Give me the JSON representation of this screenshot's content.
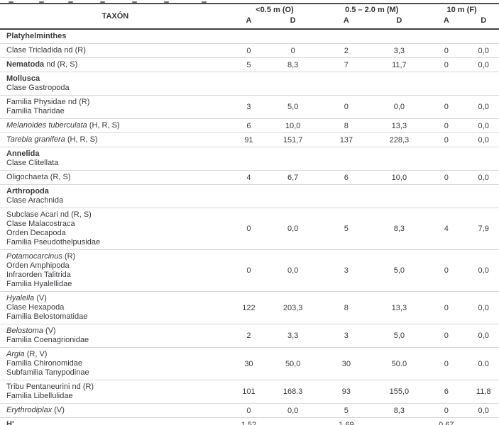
{
  "colors": {
    "text": "#3b3b40",
    "rule_dark": "#4d4d4d",
    "row_separator": "#d9d9d9",
    "background": "#ffffff"
  },
  "table": {
    "taxon_header": "TAXÓN",
    "column_groups": [
      {
        "label": "<0.5 m (O)"
      },
      {
        "label": "0.5 – 2.0 m (M)"
      },
      {
        "label": "10 m (F)"
      }
    ],
    "subcols": [
      "A",
      "D",
      "A",
      "D",
      "A",
      "D"
    ],
    "rows": [
      {
        "lines": [
          [
            {
              "text": "Platyhelminthes",
              "style": "bold"
            }
          ]
        ],
        "values": null
      },
      {
        "lines": [
          [
            {
              "text": "Clase Tricladida nd (R)",
              "style": "normal"
            }
          ]
        ],
        "values": [
          "0",
          "0",
          "2",
          "3,3",
          "0",
          "0,0"
        ]
      },
      {
        "lines": [
          [
            {
              "text": "Nematoda",
              "style": "bold"
            },
            {
              "text": " nd (R, S)",
              "style": "normal"
            }
          ]
        ],
        "values": [
          "5",
          "8,3",
          "7",
          "11,7",
          "0",
          "0,0"
        ]
      },
      {
        "lines": [
          [
            {
              "text": "Mollusca",
              "style": "bold"
            }
          ],
          [
            {
              "text": "Clase Gastropoda",
              "style": "normal"
            }
          ]
        ],
        "values": null
      },
      {
        "lines": [
          [
            {
              "text": "Familia Physidae nd (R)",
              "style": "normal"
            }
          ],
          [
            {
              "text": "Familia Tharidae",
              "style": "normal"
            }
          ]
        ],
        "values": [
          "3",
          "5,0",
          "0",
          "0,0",
          "0",
          "0,0"
        ]
      },
      {
        "lines": [
          [
            {
              "text": "Melanoides tuberculata",
              "style": "italic"
            },
            {
              "text": " (H, R, S)",
              "style": "normal"
            }
          ]
        ],
        "values": [
          "6",
          "10,0",
          "8",
          "13,3",
          "0",
          "0,0"
        ]
      },
      {
        "lines": [
          [
            {
              "text": "Tarebia granifera",
              "style": "italic"
            },
            {
              "text": " (H, R, S)",
              "style": "normal"
            }
          ]
        ],
        "values": [
          "91",
          "151,7",
          "137",
          "228,3",
          "0",
          "0,0"
        ]
      },
      {
        "lines": [
          [
            {
              "text": "Annelida",
              "style": "bold"
            }
          ],
          [
            {
              "text": "Clase Clitellata",
              "style": "normal"
            }
          ]
        ],
        "values": null
      },
      {
        "lines": [
          [
            {
              "text": "Oligochaeta (R, S)",
              "style": "normal"
            }
          ]
        ],
        "values": [
          "4",
          "6,7",
          "6",
          "10,0",
          "0",
          "0,0"
        ]
      },
      {
        "lines": [
          [
            {
              "text": "Arthropoda",
              "style": "bold"
            }
          ],
          [
            {
              "text": "Clase Arachnida",
              "style": "normal"
            }
          ]
        ],
        "values": null
      },
      {
        "lines": [
          [
            {
              "text": "Subclase Acari nd (R, S)",
              "style": "normal"
            }
          ],
          [
            {
              "text": "Clase Malacostraca",
              "style": "normal"
            }
          ],
          [
            {
              "text": "Orden Decapoda",
              "style": "normal"
            }
          ],
          [
            {
              "text": "Familia Pseudothelpusidae",
              "style": "normal"
            }
          ]
        ],
        "values": [
          "0",
          "0,0",
          "5",
          "8,3",
          "4",
          "7,9"
        ]
      },
      {
        "lines": [
          [
            {
              "text": "Potamocarcinus",
              "style": "italic"
            },
            {
              "text": " (R)",
              "style": "normal"
            }
          ],
          [
            {
              "text": "Orden Amphipoda",
              "style": "normal"
            }
          ],
          [
            {
              "text": "Infraorden Talitrida",
              "style": "normal"
            }
          ],
          [
            {
              "text": "Familia Hyalellidae",
              "style": "normal"
            }
          ]
        ],
        "values": [
          "0",
          "0,0",
          "3",
          "5,0",
          "0",
          "0,0"
        ]
      },
      {
        "lines": [
          [
            {
              "text": "Hyalella",
              "style": "italic"
            },
            {
              "text": " (V)",
              "style": "normal"
            }
          ],
          [
            {
              "text": "Clase Hexapoda",
              "style": "normal"
            }
          ],
          [
            {
              "text": "Familia Belostomatidae",
              "style": "normal"
            }
          ]
        ],
        "values": [
          "122",
          "203,3",
          "8",
          "13,3",
          "0",
          "0,0"
        ]
      },
      {
        "lines": [
          [
            {
              "text": "Belostoma",
              "style": "italic"
            },
            {
              "text": " (V)",
              "style": "normal"
            }
          ],
          [
            {
              "text": "Familia Coenagrionidae",
              "style": "normal"
            }
          ]
        ],
        "values": [
          "2",
          "3,3",
          "3",
          "5,0",
          "0",
          "0,0"
        ]
      },
      {
        "lines": [
          [
            {
              "text": "Argia",
              "style": "italic"
            },
            {
              "text": " (R, V)",
              "style": "normal"
            }
          ],
          [
            {
              "text": "Familia Chironomidae",
              "style": "normal"
            }
          ],
          [
            {
              "text": "Subfamilia Tanypodinae",
              "style": "normal"
            }
          ]
        ],
        "values": [
          "30",
          "50,0",
          "30",
          "50.0",
          "0",
          "0.0"
        ]
      },
      {
        "lines": [
          [
            {
              "text": "Tribu Pentaneurini nd (R)",
              "style": "normal"
            }
          ],
          [
            {
              "text": "Familia Libellulidae",
              "style": "normal"
            }
          ]
        ],
        "values": [
          "101",
          "168.3",
          "93",
          "155,0",
          "6",
          "11,8"
        ]
      },
      {
        "lines": [
          [
            {
              "text": "Erythrodiplax",
              "style": "italic"
            },
            {
              "text": " (V)",
              "style": "normal"
            }
          ]
        ],
        "values": [
          "0",
          "0,0",
          "5",
          "8,3",
          "0",
          "0,0"
        ]
      },
      {
        "lines": [
          [
            {
              "text": "H'",
              "style": "bold"
            }
          ]
        ],
        "values": [
          "1,52",
          "",
          "1,69",
          "",
          "0,67",
          ""
        ],
        "is_diversity_row": true
      }
    ]
  }
}
